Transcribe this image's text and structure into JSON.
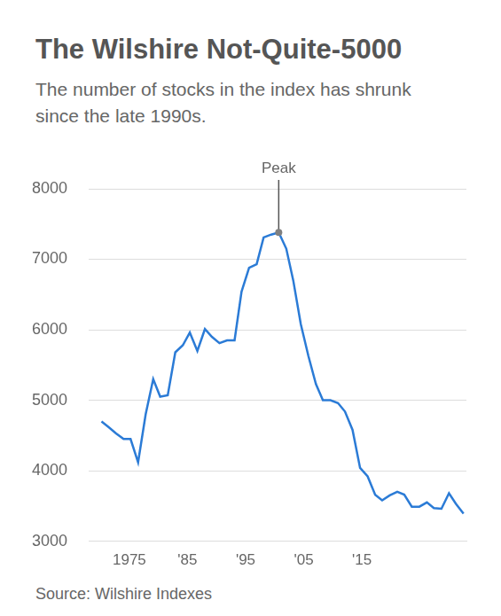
{
  "chart_data": {
    "type": "line",
    "title": "The Wilshire Not-Quite-5000",
    "subtitle": "The number of stocks in the index has shrunk since the late 1990s.",
    "source": "Source: Wilshire Indexes",
    "x": [
      1970.2,
      1971.4,
      1972.7,
      1974.0,
      1975.2,
      1976.5,
      1977.8,
      1979.1,
      1980.3,
      1981.6,
      1982.9,
      1984.2,
      1985.4,
      1986.7,
      1988.0,
      1989.2,
      1990.5,
      1991.8,
      1993.1,
      1994.3,
      1995.6,
      1996.9,
      1998.1,
      1999.4,
      2000.7,
      2002.0,
      2003.2,
      2004.5,
      2005.8,
      2007.1,
      2008.3,
      2009.6,
      2010.9,
      2012.1,
      2013.4,
      2014.7,
      2016.0,
      2017.3,
      2018.5,
      2019.8,
      2021.1,
      2022.3,
      2023.6,
      2024.9,
      2026.2,
      2027.4,
      2028.7,
      2030.0,
      2031.2,
      2032.5
    ],
    "values": [
      4700,
      4620,
      4530,
      4450,
      4450,
      4120,
      4800,
      5300,
      5050,
      5070,
      5680,
      5780,
      5960,
      5700,
      6010,
      5900,
      5810,
      5850,
      5850,
      6540,
      6880,
      6930,
      7310,
      7350,
      7380,
      7150,
      6700,
      6080,
      5630,
      5230,
      5000,
      5000,
      4960,
      4840,
      4580,
      4040,
      3920,
      3660,
      3580,
      3650,
      3700,
      3660,
      3490,
      3490,
      3550,
      3470,
      3460,
      3680,
      3530,
      3390
    ],
    "color": "#2b7bd6",
    "xlim": [
      1968,
      2033
    ],
    "xticks": [
      {
        "value": 1975,
        "label": "1975"
      },
      {
        "value": 1985,
        "label": "'85"
      },
      {
        "value": 1995,
        "label": "'95"
      },
      {
        "value": 2005,
        "label": "'05"
      },
      {
        "value": 2015,
        "label": "'15"
      }
    ],
    "ylim": [
      3000,
      8000
    ],
    "yticks": [
      3000,
      4000,
      5000,
      6000,
      7000,
      8000
    ],
    "grid": true,
    "annotations": [
      {
        "text": "Peak",
        "x": 2000.7,
        "y": 7380
      }
    ]
  }
}
